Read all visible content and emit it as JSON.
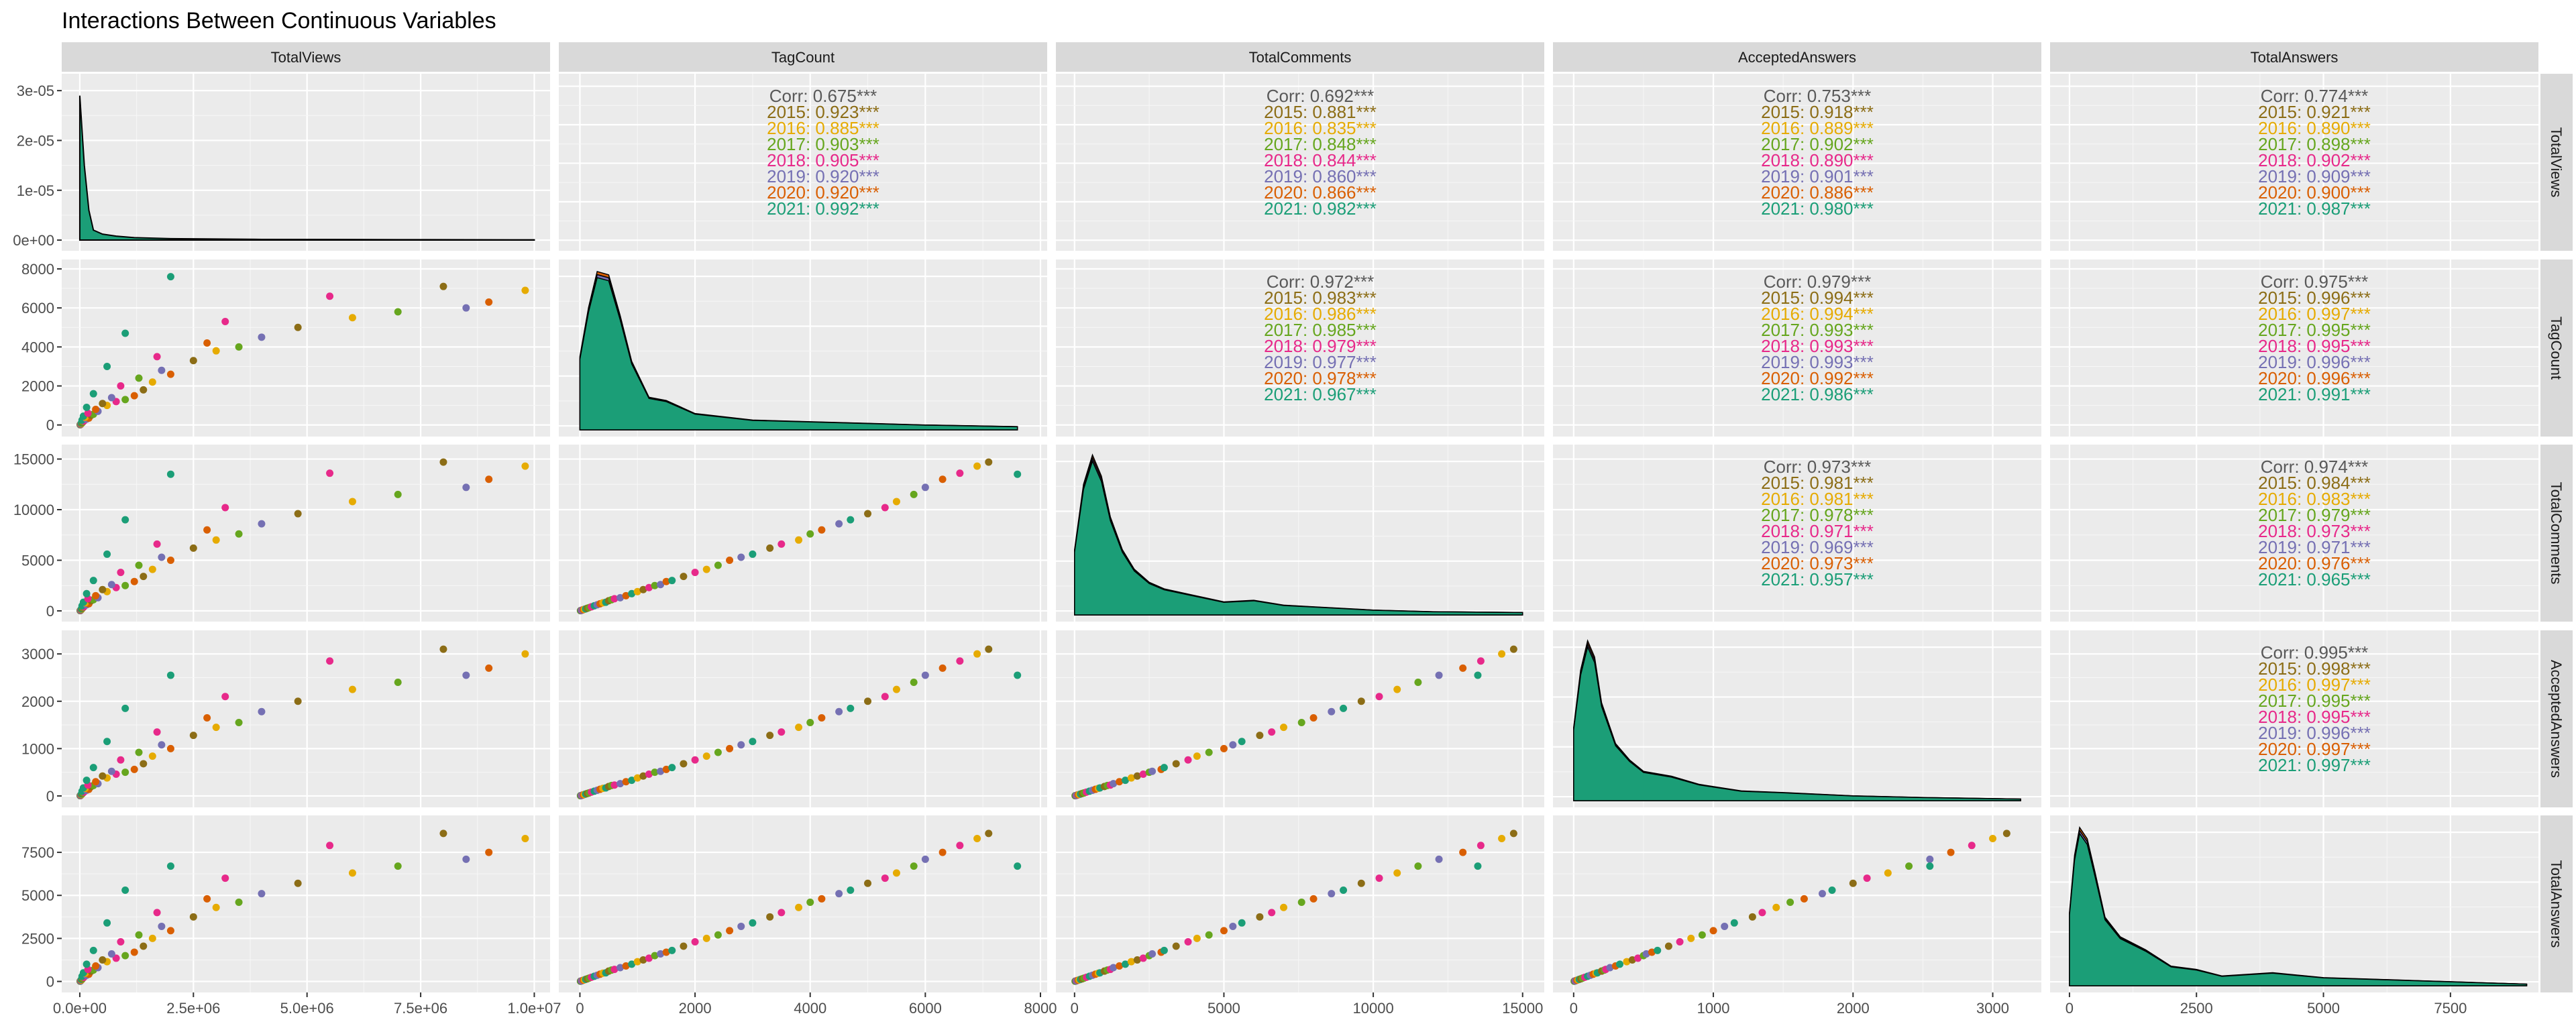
{
  "chart_data": {
    "type": "scatter-matrix",
    "title": "Interactions Between Continuous Variables",
    "variables": [
      "TotalViews",
      "TagCount",
      "TotalComments",
      "AcceptedAnswers",
      "TotalAnswers"
    ],
    "axes": {
      "TotalViews": {
        "range": [
          -250000,
          10200000
        ],
        "ticks": [
          0,
          2500000,
          5000000,
          7500000,
          10000000
        ],
        "tick_labels": [
          "0.0e+00",
          "2.5e+06",
          "5.0e+06",
          "7.5e+06",
          "1.0e+07"
        ]
      },
      "TagCount": {
        "range": [
          -250,
          8000
        ],
        "ticks": [
          0,
          2000,
          4000,
          6000,
          8000
        ],
        "tick_labels": [
          "0",
          "2000",
          "4000",
          "6000",
          "8000"
        ]
      },
      "TotalComments": {
        "range": [
          -400,
          15500
        ],
        "ticks": [
          0,
          5000,
          10000,
          15000
        ],
        "tick_labels": [
          "0",
          "5000",
          "10000",
          "15000"
        ]
      },
      "AcceptedAnswers": {
        "range": [
          -100,
          3300
        ],
        "ticks": [
          0,
          1000,
          2000,
          3000
        ],
        "tick_labels": [
          "0",
          "1000",
          "2000",
          "3000"
        ]
      },
      "TotalAnswers": {
        "range": [
          -250,
          9100
        ],
        "ticks": [
          0,
          2500,
          5000,
          7500
        ],
        "tick_labels": [
          "0",
          "2500",
          "5000",
          "7500"
        ]
      }
    },
    "density_axis": {
      "range": [
        -8e-07,
        3.15e-05
      ],
      "ticks": [
        0,
        1e-05,
        2e-05,
        3e-05
      ],
      "tick_labels": [
        "0e+00",
        "1e-05",
        "2e-05",
        "3e-05"
      ]
    },
    "groups": [
      "2015",
      "2016",
      "2017",
      "2018",
      "2019",
      "2020",
      "2021"
    ],
    "group_colors": {
      "2015": "#8c6d16",
      "2016": "#e6ab02",
      "2017": "#66a61e",
      "2018": "#e7298a",
      "2019": "#7570b3",
      "2020": "#d95f02",
      "2021": "#1b9e77"
    },
    "overall_color": "#595959",
    "grid": true,
    "correlations": [
      {
        "pair": [
          "TotalViews",
          "TagCount"
        ],
        "overall": "0.675",
        "by_group": [
          "0.923",
          "0.885",
          "0.903",
          "0.905",
          "0.920",
          "0.920",
          "0.992"
        ]
      },
      {
        "pair": [
          "TotalViews",
          "TotalComments"
        ],
        "overall": "0.692",
        "by_group": [
          "0.881",
          "0.835",
          "0.848",
          "0.844",
          "0.860",
          "0.866",
          "0.982"
        ]
      },
      {
        "pair": [
          "TotalViews",
          "AcceptedAnswers"
        ],
        "overall": "0.753",
        "by_group": [
          "0.918",
          "0.889",
          "0.902",
          "0.890",
          "0.901",
          "0.886",
          "0.980"
        ]
      },
      {
        "pair": [
          "TotalViews",
          "TotalAnswers"
        ],
        "overall": "0.774",
        "by_group": [
          "0.921",
          "0.890",
          "0.898",
          "0.902",
          "0.909",
          "0.900",
          "0.987"
        ]
      },
      {
        "pair": [
          "TagCount",
          "TotalComments"
        ],
        "overall": "0.972",
        "by_group": [
          "0.983",
          "0.986",
          "0.985",
          "0.979",
          "0.977",
          "0.978",
          "0.967"
        ]
      },
      {
        "pair": [
          "TagCount",
          "AcceptedAnswers"
        ],
        "overall": "0.979",
        "by_group": [
          "0.994",
          "0.994",
          "0.993",
          "0.993",
          "0.993",
          "0.992",
          "0.986"
        ]
      },
      {
        "pair": [
          "TagCount",
          "TotalAnswers"
        ],
        "overall": "0.975",
        "by_group": [
          "0.996",
          "0.997",
          "0.995",
          "0.995",
          "0.996",
          "0.996",
          "0.991"
        ]
      },
      {
        "pair": [
          "TotalComments",
          "AcceptedAnswers"
        ],
        "overall": "0.973",
        "by_group": [
          "0.981",
          "0.981",
          "0.978",
          "0.971",
          "0.969",
          "0.973",
          "0.957"
        ]
      },
      {
        "pair": [
          "TotalComments",
          "TotalAnswers"
        ],
        "overall": "0.974",
        "by_group": [
          "0.984",
          "0.983",
          "0.979",
          "0.973",
          "0.971",
          "0.976",
          "0.965"
        ]
      },
      {
        "pair": [
          "AcceptedAnswers",
          "TotalAnswers"
        ],
        "overall": "0.995",
        "by_group": [
          "0.998",
          "0.997",
          "0.995",
          "0.995",
          "0.996",
          "0.997",
          "0.997"
        ]
      }
    ],
    "corr_prefix": "Corr: ",
    "significance": "***",
    "scatter_points": [
      {
        "group": "2015",
        "TagCount": 10,
        "TotalViews": 8000,
        "TotalComments": 20,
        "AcceptedAnswers": 4,
        "TotalAnswers": 12
      },
      {
        "group": "2017",
        "TagCount": 15,
        "TotalViews": 12000,
        "TotalComments": 30,
        "AcceptedAnswers": 6,
        "TotalAnswers": 18
      },
      {
        "group": "2021",
        "TagCount": 20,
        "TotalViews": 15000,
        "TotalComments": 40,
        "AcceptedAnswers": 8,
        "TotalAnswers": 24
      },
      {
        "group": "2018",
        "TagCount": 30,
        "TotalViews": 20000,
        "TotalComments": 60,
        "AcceptedAnswers": 12,
        "TotalAnswers": 36
      },
      {
        "group": "2019",
        "TagCount": 40,
        "TotalViews": 25000,
        "TotalComments": 80,
        "AcceptedAnswers": 16,
        "TotalAnswers": 48
      },
      {
        "group": "2020",
        "TagCount": 60,
        "TotalViews": 30000,
        "TotalComments": 120,
        "AcceptedAnswers": 24,
        "TotalAnswers": 72
      },
      {
        "group": "2016",
        "TagCount": 80,
        "TotalViews": 40000,
        "TotalComments": 160,
        "AcceptedAnswers": 32,
        "TotalAnswers": 96
      },
      {
        "group": "2021",
        "TagCount": 100,
        "TotalViews": 35000,
        "TotalComments": 200,
        "AcceptedAnswers": 40,
        "TotalAnswers": 120
      },
      {
        "group": "2015",
        "TagCount": 130,
        "TotalViews": 60000,
        "TotalComments": 260,
        "AcceptedAnswers": 52,
        "TotalAnswers": 156
      },
      {
        "group": "2017",
        "TagCount": 160,
        "TotalViews": 70000,
        "TotalComments": 320,
        "AcceptedAnswers": 64,
        "TotalAnswers": 192
      },
      {
        "group": "2018",
        "TagCount": 200,
        "TotalViews": 90000,
        "TotalComments": 400,
        "AcceptedAnswers": 80,
        "TotalAnswers": 240
      },
      {
        "group": "2021",
        "TagCount": 250,
        "TotalViews": 50000,
        "TotalComments": 500,
        "AcceptedAnswers": 100,
        "TotalAnswers": 300
      },
      {
        "group": "2019",
        "TagCount": 300,
        "TotalViews": 150000,
        "TotalComments": 600,
        "AcceptedAnswers": 120,
        "TotalAnswers": 360
      },
      {
        "group": "2020",
        "TagCount": 350,
        "TotalViews": 200000,
        "TotalComments": 700,
        "AcceptedAnswers": 140,
        "TotalAnswers": 420
      },
      {
        "group": "2016",
        "TagCount": 400,
        "TotalViews": 120000,
        "TotalComments": 800,
        "AcceptedAnswers": 160,
        "TotalAnswers": 480
      },
      {
        "group": "2021",
        "TagCount": 450,
        "TotalViews": 80000,
        "TotalComments": 850,
        "AcceptedAnswers": 170,
        "TotalAnswers": 500
      },
      {
        "group": "2015",
        "TagCount": 500,
        "TotalViews": 250000,
        "TotalComments": 1000,
        "AcceptedAnswers": 200,
        "TotalAnswers": 600
      },
      {
        "group": "2017",
        "TagCount": 550,
        "TotalViews": 300000,
        "TotalComments": 1100,
        "AcceptedAnswers": 220,
        "TotalAnswers": 660
      },
      {
        "group": "2018",
        "TagCount": 600,
        "TotalViews": 180000,
        "TotalComments": 1200,
        "AcceptedAnswers": 230,
        "TotalAnswers": 700
      },
      {
        "group": "2019",
        "TagCount": 700,
        "TotalViews": 400000,
        "TotalComments": 1300,
        "AcceptedAnswers": 260,
        "TotalAnswers": 800
      },
      {
        "group": "2020",
        "TagCount": 800,
        "TotalViews": 350000,
        "TotalComments": 1500,
        "AcceptedAnswers": 300,
        "TotalAnswers": 900
      },
      {
        "group": "2021",
        "TagCount": 900,
        "TotalViews": 150000,
        "TotalComments": 1700,
        "AcceptedAnswers": 330,
        "TotalAnswers": 1000
      },
      {
        "group": "2016",
        "TagCount": 1000,
        "TotalViews": 600000,
        "TotalComments": 1900,
        "AcceptedAnswers": 380,
        "TotalAnswers": 1150
      },
      {
        "group": "2015",
        "TagCount": 1100,
        "TotalViews": 500000,
        "TotalComments": 2100,
        "AcceptedAnswers": 420,
        "TotalAnswers": 1250
      },
      {
        "group": "2018",
        "TagCount": 1200,
        "TotalViews": 800000,
        "TotalComments": 2300,
        "AcceptedAnswers": 460,
        "TotalAnswers": 1350
      },
      {
        "group": "2017",
        "TagCount": 1300,
        "TotalViews": 1000000,
        "TotalComments": 2500,
        "AcceptedAnswers": 500,
        "TotalAnswers": 1500
      },
      {
        "group": "2019",
        "TagCount": 1400,
        "TotalViews": 700000,
        "TotalComments": 2600,
        "AcceptedAnswers": 520,
        "TotalAnswers": 1600
      },
      {
        "group": "2020",
        "TagCount": 1500,
        "TotalViews": 1200000,
        "TotalComments": 2900,
        "AcceptedAnswers": 560,
        "TotalAnswers": 1700
      },
      {
        "group": "2021",
        "TagCount": 1600,
        "TotalViews": 300000,
        "TotalComments": 3000,
        "AcceptedAnswers": 600,
        "TotalAnswers": 1800
      },
      {
        "group": "2015",
        "TagCount": 1800,
        "TotalViews": 1400000,
        "TotalComments": 3400,
        "AcceptedAnswers": 680,
        "TotalAnswers": 2050
      },
      {
        "group": "2018",
        "TagCount": 2000,
        "TotalViews": 900000,
        "TotalComments": 3800,
        "AcceptedAnswers": 760,
        "TotalAnswers": 2300
      },
      {
        "group": "2016",
        "TagCount": 2200,
        "TotalViews": 1600000,
        "TotalComments": 4100,
        "AcceptedAnswers": 840,
        "TotalAnswers": 2500
      },
      {
        "group": "2017",
        "TagCount": 2400,
        "TotalViews": 1300000,
        "TotalComments": 4500,
        "AcceptedAnswers": 920,
        "TotalAnswers": 2700
      },
      {
        "group": "2020",
        "TagCount": 2600,
        "TotalViews": 2000000,
        "TotalComments": 5000,
        "AcceptedAnswers": 1000,
        "TotalAnswers": 2950
      },
      {
        "group": "2019",
        "TagCount": 2800,
        "TotalViews": 1800000,
        "TotalComments": 5300,
        "AcceptedAnswers": 1080,
        "TotalAnswers": 3200
      },
      {
        "group": "2021",
        "TagCount": 3000,
        "TotalViews": 600000,
        "TotalComments": 5600,
        "AcceptedAnswers": 1150,
        "TotalAnswers": 3400
      },
      {
        "group": "2015",
        "TagCount": 3300,
        "TotalViews": 2500000,
        "TotalComments": 6200,
        "AcceptedAnswers": 1280,
        "TotalAnswers": 3750
      },
      {
        "group": "2018",
        "TagCount": 3500,
        "TotalViews": 1700000,
        "TotalComments": 6600,
        "AcceptedAnswers": 1350,
        "TotalAnswers": 4000
      },
      {
        "group": "2016",
        "TagCount": 3800,
        "TotalViews": 3000000,
        "TotalComments": 7000,
        "AcceptedAnswers": 1450,
        "TotalAnswers": 4300
      },
      {
        "group": "2017",
        "TagCount": 4000,
        "TotalViews": 3500000,
        "TotalComments": 7600,
        "AcceptedAnswers": 1550,
        "TotalAnswers": 4600
      },
      {
        "group": "2020",
        "TagCount": 4200,
        "TotalViews": 2800000,
        "TotalComments": 8000,
        "AcceptedAnswers": 1650,
        "TotalAnswers": 4800
      },
      {
        "group": "2019",
        "TagCount": 4500,
        "TotalViews": 4000000,
        "TotalComments": 8600,
        "AcceptedAnswers": 1780,
        "TotalAnswers": 5100
      },
      {
        "group": "2021",
        "TagCount": 4700,
        "TotalViews": 1000000,
        "TotalComments": 9000,
        "AcceptedAnswers": 1850,
        "TotalAnswers": 5300
      },
      {
        "group": "2015",
        "TagCount": 5000,
        "TotalViews": 4800000,
        "TotalComments": 9600,
        "AcceptedAnswers": 2000,
        "TotalAnswers": 5700
      },
      {
        "group": "2018",
        "TagCount": 5300,
        "TotalViews": 3200000,
        "TotalComments": 10200,
        "AcceptedAnswers": 2100,
        "TotalAnswers": 6000
      },
      {
        "group": "2016",
        "TagCount": 5500,
        "TotalViews": 6000000,
        "TotalComments": 10800,
        "AcceptedAnswers": 2250,
        "TotalAnswers": 6300
      },
      {
        "group": "2017",
        "TagCount": 5800,
        "TotalViews": 7000000,
        "TotalComments": 11500,
        "AcceptedAnswers": 2400,
        "TotalAnswers": 6700
      },
      {
        "group": "2019",
        "TagCount": 6000,
        "TotalViews": 8500000,
        "TotalComments": 12200,
        "AcceptedAnswers": 2550,
        "TotalAnswers": 7100
      },
      {
        "group": "2020",
        "TagCount": 6300,
        "TotalViews": 9000000,
        "TotalComments": 13000,
        "AcceptedAnswers": 2700,
        "TotalAnswers": 7500
      },
      {
        "group": "2018",
        "TagCount": 6600,
        "TotalViews": 5500000,
        "TotalComments": 13600,
        "AcceptedAnswers": 2850,
        "TotalAnswers": 7900
      },
      {
        "group": "2016",
        "TagCount": 6900,
        "TotalViews": 9800000,
        "TotalComments": 14300,
        "AcceptedAnswers": 3000,
        "TotalAnswers": 8300
      },
      {
        "group": "2015",
        "TagCount": 7100,
        "TotalViews": 8000000,
        "TotalComments": 14700,
        "AcceptedAnswers": 3100,
        "TotalAnswers": 8600
      },
      {
        "group": "2021",
        "TagCount": 7600,
        "TotalViews": 2000000,
        "TotalComments": 13500,
        "AcceptedAnswers": 2550,
        "TotalAnswers": 6700
      }
    ],
    "densities": {
      "TotalViews": {
        "x": [
          0,
          100000,
          200000,
          300000,
          500000,
          800000,
          1200000,
          2000000,
          4000000,
          7000000,
          10000000
        ],
        "y": [
          2.9e-05,
          1.5e-05,
          6e-06,
          2e-06,
          1.2e-06,
          8e-07,
          5e-07,
          3e-07,
          1.5e-07,
          1e-07,
          5e-08
        ]
      },
      "TagCount": {
        "x": [
          0,
          150,
          300,
          500,
          700,
          900,
          1200,
          1500,
          2000,
          2500,
          3000,
          4000,
          5000,
          6000,
          7600
        ],
        "y": [
          0.45,
          0.75,
          0.97,
          0.95,
          0.7,
          0.42,
          0.2,
          0.18,
          0.1,
          0.08,
          0.06,
          0.05,
          0.04,
          0.03,
          0.02
        ]
      },
      "TotalComments": {
        "x": [
          0,
          300,
          600,
          900,
          1200,
          1600,
          2000,
          2500,
          3000,
          4000,
          5000,
          6000,
          7000,
          8000,
          10000,
          12000,
          15000
        ],
        "y": [
          0.4,
          0.8,
          0.98,
          0.85,
          0.6,
          0.4,
          0.28,
          0.2,
          0.16,
          0.12,
          0.08,
          0.09,
          0.06,
          0.05,
          0.03,
          0.02,
          0.015
        ]
      },
      "AcceptedAnswers": {
        "x": [
          0,
          50,
          100,
          150,
          200,
          300,
          400,
          500,
          700,
          900,
          1200,
          1500,
          2000,
          2500,
          3200
        ],
        "y": [
          0.45,
          0.8,
          0.98,
          0.88,
          0.6,
          0.35,
          0.25,
          0.18,
          0.15,
          0.1,
          0.06,
          0.05,
          0.03,
          0.02,
          0.01
        ]
      },
      "TotalAnswers": {
        "x": [
          0,
          100,
          200,
          350,
          500,
          700,
          1000,
          1500,
          2000,
          2500,
          3000,
          4000,
          5000,
          6000,
          7000,
          9000
        ],
        "y": [
          0.45,
          0.8,
          0.97,
          0.9,
          0.7,
          0.42,
          0.3,
          0.22,
          0.12,
          0.1,
          0.06,
          0.08,
          0.05,
          0.04,
          0.03,
          0.01
        ]
      }
    }
  }
}
